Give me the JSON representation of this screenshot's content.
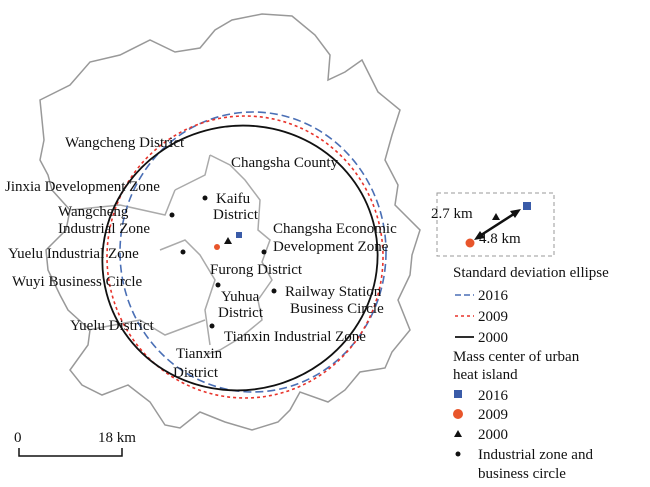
{
  "map": {
    "labels": [
      [
        "Wangcheng District"
      ],
      [
        "Changsha County"
      ],
      [
        "Jinxia Development Zone"
      ],
      [
        "Kaifu",
        "District"
      ],
      [
        "Wangcheng",
        "Industrial Zone"
      ],
      [
        "Changsha Economic",
        "Development Zone"
      ],
      [
        "Yuelu Industrial Zone"
      ],
      [
        "Furong District"
      ],
      [
        "Wuyi Business Circle"
      ],
      [
        "Yuhua",
        "District"
      ],
      [
        "Railway Station",
        "Business Circle"
      ],
      [
        "Yuelu District"
      ],
      [
        "Tianxin Industrial Zone"
      ],
      [
        "Tianxin",
        "District"
      ]
    ],
    "scale_bar": {
      "start": "0",
      "end": "18 km"
    },
    "inset": {
      "short_distance": "2.7 km",
      "long_distance": "4.8 km"
    },
    "legend": {
      "ellipse_title": "Standard deviation ellipse",
      "ellipse_items": [
        "2016",
        "2009",
        "2000"
      ],
      "center_title": [
        "Mass center of urban",
        "heat island"
      ],
      "center_items": [
        "2016",
        "2009",
        "2000"
      ],
      "dot_item": [
        "Industrial zone and",
        "business circle"
      ]
    }
  }
}
